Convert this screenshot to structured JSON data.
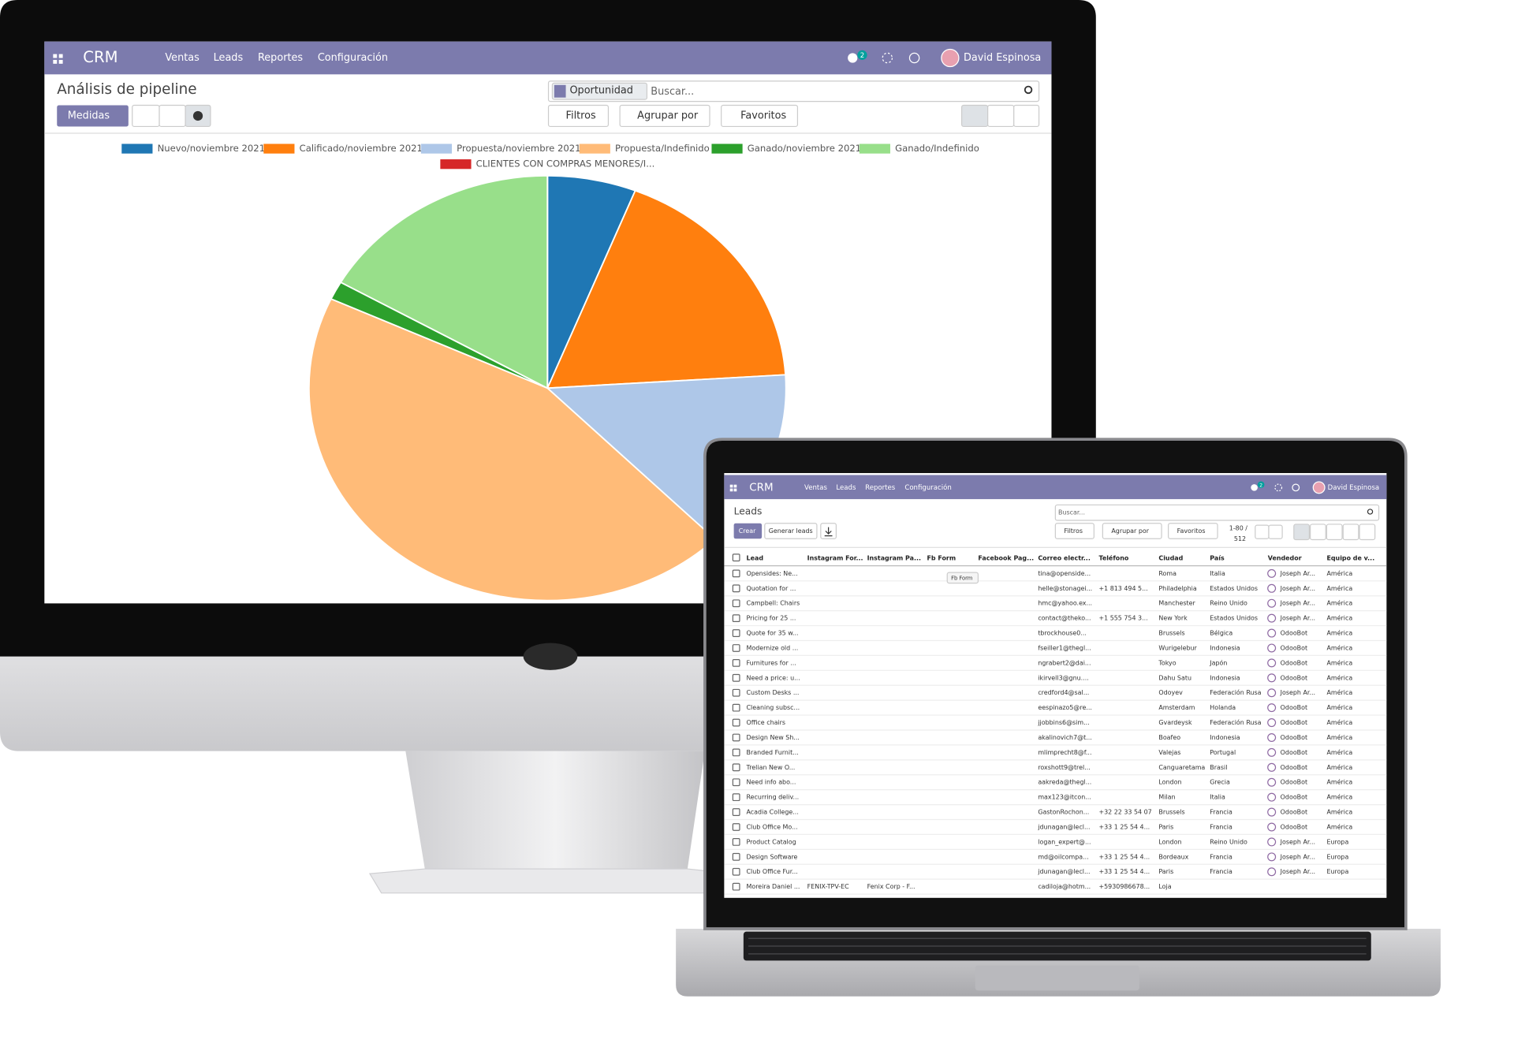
{
  "desktop": {
    "app": "CRM",
    "menu": [
      "Ventas",
      "Leads",
      "Reportes",
      "Configuración"
    ],
    "badge": 2,
    "user": "David Espinosa",
    "title": "Análisis de pipeline",
    "facet": "Oportunidad",
    "search": "Buscar...",
    "measures": "Medidas",
    "filters": "Filtros",
    "group_by": "Agrupar por",
    "favorites": "Favoritos"
  },
  "chart_data": {
    "type": "pie",
    "categories": [
      "Nuevo/noviembre 2021",
      "Calificado/noviembre 2021",
      "Propuesta/noviembre 2021",
      "Propuesta/Indefinido",
      "Ganado/noviembre 2021",
      "Ganado/Indefinido",
      "CLIENTES CON COMPRAS MENORES/I..."
    ],
    "values": [
      6,
      18,
      13.6,
      44.3,
      1.4,
      16.7,
      0
    ],
    "colors": [
      "#1f77b4",
      "#ff7f0e",
      "#aec7e8",
      "#ffbb78",
      "#2ca02c",
      "#98df8a",
      "#d62728"
    ]
  },
  "laptop": {
    "app": "CRM",
    "menu": [
      "Ventas",
      "Leads",
      "Reportes",
      "Configuración"
    ],
    "badge": 2,
    "user": "David Espinosa",
    "title": "Leads",
    "search": "Buscar...",
    "create": "Crear",
    "generate": "Generar leads",
    "filters": "Filtros",
    "group_by": "Agrupar por",
    "favorites": "Favoritos",
    "pager": "1-80 /",
    "pager_total": 512,
    "tooltip": "Fb Form",
    "table": {
      "columns": [
        "Lead",
        "Instagram For...",
        "Instagram Pa...",
        "Fb Form",
        "Facebook Pag...",
        "Correo electr...",
        "Teléfono",
        "Ciudad",
        "País",
        "Vendedor",
        "Equipo de v..."
      ],
      "rows": [
        [
          "Opensides: Ne...",
          null,
          null,
          null,
          null,
          "tina@openside...",
          null,
          "Roma",
          "Italia",
          "Joseph Ar...",
          "América"
        ],
        [
          "Quotation for ...",
          null,
          null,
          null,
          null,
          "helle@stonagei...",
          "+1 813 494 5...",
          "Philadelphia",
          "Estados Unidos",
          "Joseph Ar...",
          "América"
        ],
        [
          "Campbell: Chairs",
          null,
          null,
          null,
          null,
          "hmc@yahoo.ex...",
          null,
          "Manchester",
          "Reino Unido",
          "Joseph Ar...",
          "América"
        ],
        [
          "Pricing for 25 ...",
          null,
          null,
          null,
          null,
          "contact@theko...",
          "+1 555 754 3...",
          "New York",
          "Estados Unidos",
          "Joseph Ar...",
          "América"
        ],
        [
          "Quote for 35 w...",
          null,
          null,
          null,
          null,
          "tbrockhouse0...",
          null,
          "Brussels",
          "Bélgica",
          "OdooBot",
          "América"
        ],
        [
          "Modernize old ...",
          null,
          null,
          null,
          null,
          "fseiller1@thegl...",
          null,
          "Wurigelebur",
          "Indonesia",
          "OdooBot",
          "América"
        ],
        [
          "Furnitures for ...",
          null,
          null,
          null,
          null,
          "ngrabert2@dai...",
          null,
          "Tokyo",
          "Japón",
          "OdooBot",
          "América"
        ],
        [
          "Need a price: u...",
          null,
          null,
          null,
          null,
          "ikirvell3@gnu....",
          null,
          "Dahu Satu",
          "Indonesia",
          "OdooBot",
          "América"
        ],
        [
          "Custom Desks ...",
          null,
          null,
          null,
          null,
          "credford4@sal...",
          null,
          "Odoyev",
          "Federación Rusa",
          "Joseph Ar...",
          "América"
        ],
        [
          "Cleaning subsc...",
          null,
          null,
          null,
          null,
          "eespinazo5@re...",
          null,
          "Amsterdam",
          "Holanda",
          "OdooBot",
          "América"
        ],
        [
          "Office chairs",
          null,
          null,
          null,
          null,
          "jjobbins6@sim...",
          null,
          "Gvardeysk",
          "Federación Rusa",
          "OdooBot",
          "América"
        ],
        [
          "Design New Sh...",
          null,
          null,
          null,
          null,
          "akalinovich7@t...",
          null,
          "Boafeo",
          "Indonesia",
          "OdooBot",
          "América"
        ],
        [
          "Branded Furnit...",
          null,
          null,
          null,
          null,
          "mlimprecht8@f...",
          null,
          "Valejas",
          "Portugal",
          "OdooBot",
          "América"
        ],
        [
          "Trelian New O...",
          null,
          null,
          null,
          null,
          "roxshott9@trel...",
          null,
          "Canguaretama",
          "Brasil",
          "OdooBot",
          "América"
        ],
        [
          "Need info abo...",
          null,
          null,
          null,
          null,
          "aakreda@thegl...",
          null,
          "London",
          "Grecia",
          "OdooBot",
          "América"
        ],
        [
          "Recurring deliv...",
          null,
          null,
          null,
          null,
          "max123@itcon...",
          null,
          "Milan",
          "Italia",
          "OdooBot",
          "América"
        ],
        [
          "Acadia College...",
          null,
          null,
          null,
          null,
          "GastonRochon...",
          "+32 22 33 54 07",
          "Brussels",
          "Francia",
          "OdooBot",
          "América"
        ],
        [
          "Club Office Mo...",
          null,
          null,
          null,
          null,
          "jdunagan@lecl...",
          "+33 1 25 54 4...",
          "Paris",
          "Francia",
          "OdooBot",
          "América"
        ],
        [
          "Product Catalog",
          null,
          null,
          null,
          null,
          "logan_expert@...",
          null,
          "London",
          "Reino Unido",
          "Joseph Ar...",
          "Europa"
        ],
        [
          "Design Software",
          null,
          null,
          null,
          null,
          "md@oilcompa...",
          "+33 1 25 54 4...",
          "Bordeaux",
          "Francia",
          "Joseph Ar...",
          "Europa"
        ],
        [
          "Club Office Fur...",
          null,
          null,
          null,
          null,
          "jdunagan@lecl...",
          "+33 1 25 54 4...",
          "Paris",
          "Francia",
          "Joseph Ar...",
          "Europa"
        ],
        [
          "Moreira Daniel ...",
          "FENIX-TPV-EC",
          "Fenix Corp - F...",
          null,
          null,
          "cadiloja@hotm...",
          "+5930986678...",
          "Loja",
          null,
          null,
          null
        ]
      ]
    }
  }
}
